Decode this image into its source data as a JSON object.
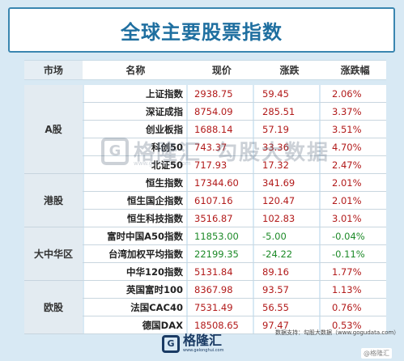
{
  "title": "全球主要股票指数",
  "headers": {
    "market": "市场",
    "name": "名称",
    "price": "现价",
    "change": "涨跌",
    "pct": "涨跌幅"
  },
  "groups": [
    {
      "market": "A股",
      "rows": [
        {
          "name": "上证指数",
          "price": "2938.75",
          "change": "59.45",
          "pct": "2.06%",
          "dir": "up"
        },
        {
          "name": "深证成指",
          "price": "8754.09",
          "change": "285.51",
          "pct": "3.37%",
          "dir": "up"
        },
        {
          "name": "创业板指",
          "price": "1688.14",
          "change": "57.19",
          "pct": "3.51%",
          "dir": "up"
        },
        {
          "name": "科创50",
          "price": "743.37",
          "change": "33.36",
          "pct": "4.70%",
          "dir": "up"
        },
        {
          "name": "北证50",
          "price": "717.93",
          "change": "17.32",
          "pct": "2.47%",
          "dir": "up"
        }
      ]
    },
    {
      "market": "港股",
      "rows": [
        {
          "name": "恒生指数",
          "price": "17344.60",
          "change": "341.69",
          "pct": "2.01%",
          "dir": "up"
        },
        {
          "name": "恒生国企指数",
          "price": "6107.16",
          "change": "120.47",
          "pct": "2.01%",
          "dir": "up"
        },
        {
          "name": "恒生科技指数",
          "price": "3516.87",
          "change": "102.83",
          "pct": "3.01%",
          "dir": "up"
        }
      ]
    },
    {
      "market": "大中华区",
      "rows": [
        {
          "name": "富时中国A50指数",
          "price": "11853.00",
          "change": "-5.00",
          "pct": "-0.04%",
          "dir": "down"
        },
        {
          "name": "台湾加权平均指数",
          "price": "22199.35",
          "change": "-24.22",
          "pct": "-0.11%",
          "dir": "down"
        },
        {
          "name": "中华120指数",
          "price": "5131.84",
          "change": "89.16",
          "pct": "1.77%",
          "dir": "up"
        }
      ]
    },
    {
      "market": "欧股",
      "rows": [
        {
          "name": "英国富时100",
          "price": "8367.98",
          "change": "93.57",
          "pct": "1.13%",
          "dir": "up"
        },
        {
          "name": "法国CAC40",
          "price": "7531.49",
          "change": "56.55",
          "pct": "0.76%",
          "dir": "up"
        },
        {
          "name": "德国DAX",
          "price": "18508.65",
          "change": "97.47",
          "pct": "0.53%",
          "dir": "up"
        }
      ]
    }
  ],
  "footer": {
    "source": "数据支持：勾股大数据（www.gogudata.com）",
    "logo_text": "格隆汇",
    "logo_sub": "www.gelonghui.com",
    "logo_mark": "G"
  },
  "watermark": {
    "mark": "G",
    "text": "格隆汇",
    "sub": "www.gelonghui.com",
    "right_text": "勾股大数据"
  },
  "corner_badge": "@格隆汇",
  "colors": {
    "up": "#b21a1a",
    "down": "#1d8a28",
    "title": "#1f6fa0",
    "background": "#d8e9f4"
  }
}
